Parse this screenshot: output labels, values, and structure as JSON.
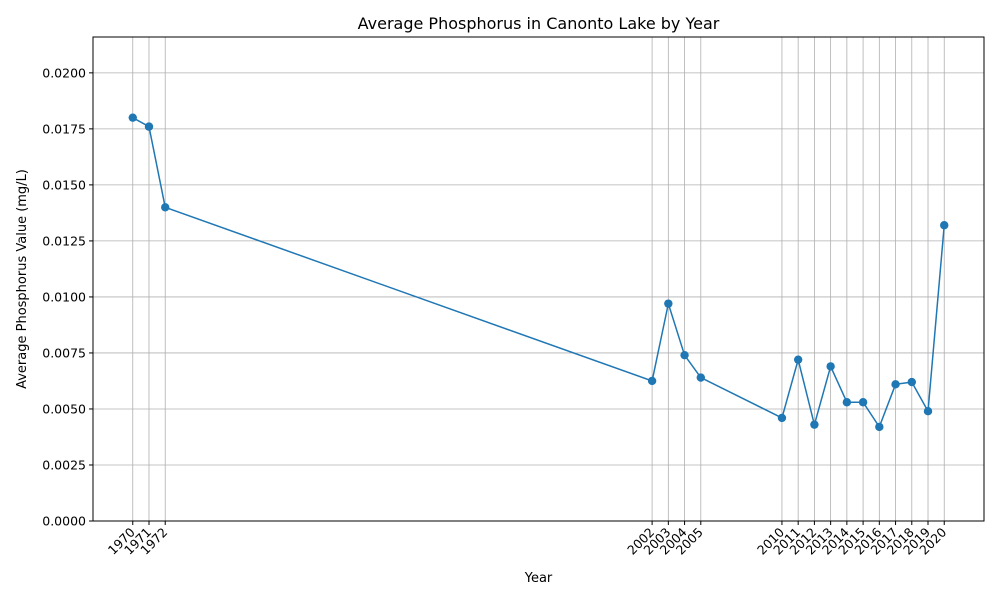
{
  "chart_data": {
    "type": "line",
    "title": "Average Phosphorus in Canonto Lake by Year",
    "xlabel": "Year",
    "ylabel": "Average Phosphorus Value (mg/L)",
    "x": [
      1970,
      1971,
      1972,
      2002,
      2003,
      2004,
      2005,
      2010,
      2011,
      2012,
      2013,
      2014,
      2015,
      2016,
      2017,
      2018,
      2019,
      2020
    ],
    "series": [
      {
        "values": [
          0.018,
          0.0176,
          0.014,
          0.00625,
          0.0097,
          0.0074,
          0.0064,
          0.0046,
          0.0072,
          0.0043,
          0.0069,
          0.0053,
          0.0053,
          0.0042,
          0.0061,
          0.0062,
          0.0049,
          0.0132
        ]
      }
    ],
    "xticks": [
      "1970",
      "1971",
      "1972",
      "2002",
      "2003",
      "2004",
      "2005",
      "2010",
      "2011",
      "2012",
      "2013",
      "2014",
      "2015",
      "2016",
      "2017",
      "2018",
      "2019",
      "2020"
    ],
    "yticks": [
      "0.0000",
      "0.0025",
      "0.0050",
      "0.0075",
      "0.0100",
      "0.0125",
      "0.0150",
      "0.0175",
      "0.0200"
    ],
    "xlim": [
      1967.55,
      2022.45
    ],
    "ylim": [
      0,
      0.0216
    ],
    "grid": true,
    "color": "#1f77b4"
  }
}
